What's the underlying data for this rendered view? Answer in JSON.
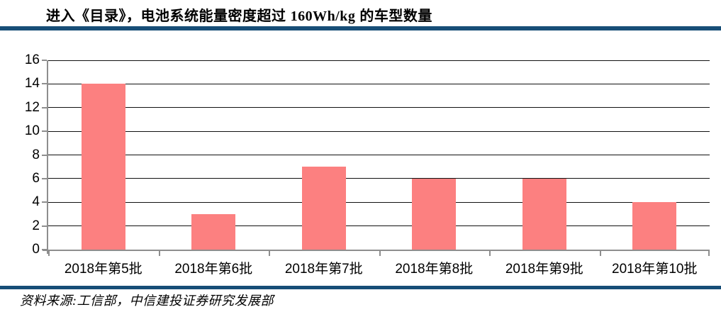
{
  "header": {
    "title_prefix": "进入《目录》，电池系统能量密度超过 ",
    "title_en": "160Wh/kg",
    "title_suffix": " 的车型数量"
  },
  "footer": {
    "source": "资料来源:工信部，中信建投证券研究发展部"
  },
  "colors": {
    "accent_blue": "#174E77",
    "bar_fill": "#FC8080",
    "axis_gray": "#8E8E8E",
    "gridline": "#111111"
  },
  "chart_data": {
    "type": "bar",
    "title": "进入《目录》，电池系统能量密度超过 160Wh/kg 的车型数量",
    "categories": [
      "2018年第5批",
      "2018年第6批",
      "2018年第7批",
      "2018年第8批",
      "2018年第9批",
      "2018年第10批"
    ],
    "values": [
      14,
      3,
      7,
      6,
      6,
      4
    ],
    "xlabel": "",
    "ylabel": "",
    "ylim": [
      0,
      16
    ],
    "ytick_step": 2,
    "yticks": [
      0,
      2,
      4,
      6,
      8,
      10,
      12,
      14,
      16
    ],
    "grid": true,
    "legend": "none"
  }
}
